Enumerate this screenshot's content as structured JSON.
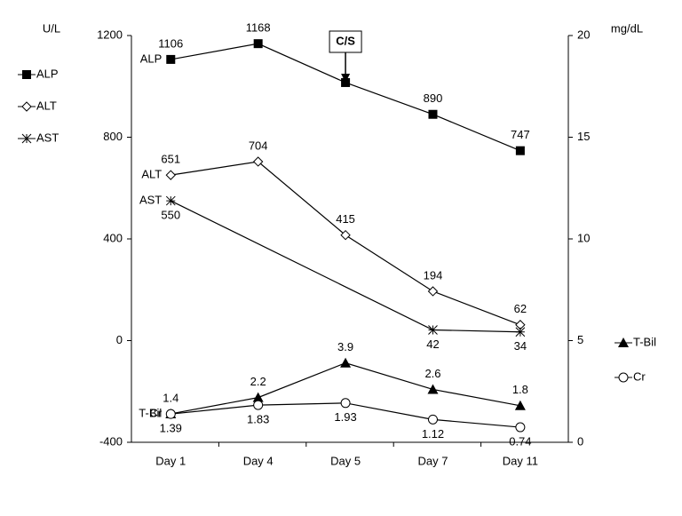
{
  "chart_data": {
    "type": "line",
    "ylabel": "U/L",
    "y2label": "mg/dL",
    "categories": [
      "Day 1",
      "Day 4",
      "Day 5",
      "Day 7",
      "Day 11"
    ],
    "ylim": [
      -400,
      1200
    ],
    "yticks": [
      -400,
      0,
      400,
      800,
      1200
    ],
    "y2lim": [
      0,
      20
    ],
    "y2ticks": [
      0,
      5,
      10,
      15,
      20
    ],
    "connect_gaps": true,
    "series": [
      {
        "name": "ALP",
        "color": "#000000",
        "marker": "square",
        "label_position": "above",
        "values": [
          1106,
          1168,
          1015,
          890,
          747
        ],
        "value_labels": [
          "1106",
          "1168",
          null,
          "890",
          "747"
        ]
      },
      {
        "name": "ALT",
        "color": "#000000",
        "marker": "diamond",
        "label_position": "above",
        "values": [
          651,
          704,
          415,
          194,
          62
        ]
      },
      {
        "name": "AST",
        "color": "#000000",
        "marker": "asterisk",
        "label_position": "below",
        "values": [
          550,
          null,
          null,
          42,
          34
        ]
      },
      {
        "name": "T-Bil",
        "color": "#000000",
        "marker": "triangle",
        "label_position": "above",
        "axis": "y2",
        "values": [
          1.4,
          2.2,
          3.9,
          2.6,
          1.8
        ]
      },
      {
        "name": "Cr",
        "color": "#000000",
        "marker": "circle",
        "label_position": "below",
        "axis": "y2",
        "values": [
          1.39,
          1.83,
          1.93,
          1.12,
          0.74
        ]
      }
    ],
    "annotations": [
      {
        "text": "C/S",
        "category": "Day 5",
        "series": "ALP"
      }
    ]
  }
}
